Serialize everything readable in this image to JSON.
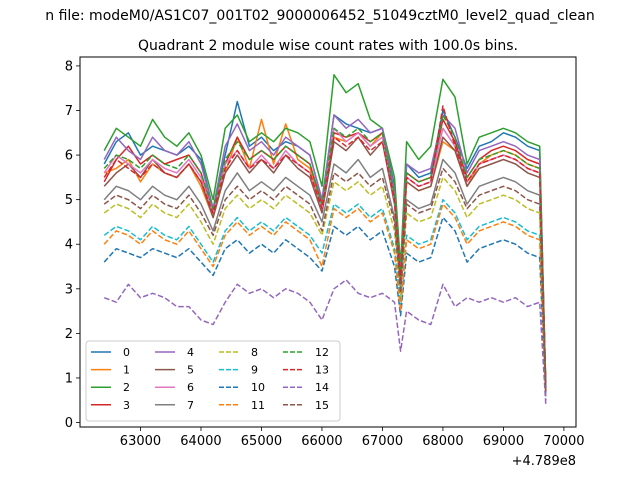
{
  "figure": {
    "suptitle": "n file: modeM0/AS1C07_001T02_9000006452_51049cztM0_level2_quad_clean",
    "x_offset_label": "+4.789e8"
  },
  "chart_data": {
    "type": "line",
    "title": "Quadrant 2 module wise count rates with 100.0s bins.",
    "xlabel": "",
    "ylabel": "",
    "xlim": [
      62000,
      70200
    ],
    "ylim": [
      -0.1,
      8.2
    ],
    "x_ticks": [
      63000,
      64000,
      65000,
      66000,
      67000,
      68000,
      69000,
      70000
    ],
    "y_ticks": [
      0,
      1,
      2,
      3,
      4,
      5,
      6,
      7,
      8
    ],
    "grid": false,
    "legend_position": "lower-left",
    "legend_columns": 4,
    "x": [
      62400,
      62600,
      62800,
      63000,
      63200,
      63400,
      63600,
      63800,
      64000,
      64200,
      64400,
      64600,
      64800,
      65000,
      65200,
      65400,
      65600,
      65800,
      66000,
      66200,
      66400,
      66600,
      66800,
      67000,
      67200,
      67300,
      67400,
      67600,
      67800,
      68000,
      68200,
      68400,
      68600,
      68800,
      69000,
      69200,
      69400,
      69600,
      69700
    ],
    "series": [
      {
        "name": "0",
        "color": "#1f77b4",
        "dash": "solid",
        "values": [
          5.8,
          6.3,
          6.5,
          6.0,
          6.2,
          6.1,
          6.0,
          6.2,
          5.9,
          4.8,
          6.0,
          7.2,
          6.2,
          6.4,
          6.1,
          6.3,
          6.2,
          6.0,
          5.0,
          6.9,
          6.7,
          6.6,
          6.5,
          6.6,
          5.3,
          3.4,
          5.8,
          5.5,
          5.6,
          7.0,
          6.4,
          5.7,
          6.2,
          6.3,
          6.5,
          6.4,
          6.2,
          6.1,
          0.8
        ]
      },
      {
        "name": "1",
        "color": "#ff7f0e",
        "dash": "solid",
        "values": [
          5.6,
          5.7,
          5.9,
          5.4,
          5.8,
          5.6,
          5.5,
          5.8,
          5.3,
          4.6,
          5.6,
          6.4,
          5.7,
          6.8,
          5.8,
          6.7,
          5.9,
          5.7,
          4.8,
          6.4,
          6.3,
          6.5,
          6.2,
          6.5,
          5.0,
          3.2,
          5.4,
          5.2,
          5.3,
          6.3,
          6.1,
          5.3,
          5.8,
          6.0,
          6.1,
          6.0,
          5.8,
          5.7,
          0.7
        ]
      },
      {
        "name": "2",
        "color": "#2ca02c",
        "dash": "solid",
        "values": [
          6.1,
          6.6,
          6.4,
          6.2,
          6.8,
          6.4,
          6.2,
          6.5,
          6.0,
          5.0,
          6.6,
          6.9,
          6.3,
          6.5,
          6.3,
          6.6,
          6.5,
          6.3,
          5.3,
          7.8,
          7.4,
          7.6,
          6.8,
          6.6,
          5.5,
          3.5,
          6.3,
          5.9,
          6.2,
          7.7,
          7.3,
          5.8,
          6.4,
          6.5,
          6.6,
          6.5,
          6.3,
          6.2,
          0.8
        ]
      },
      {
        "name": "3",
        "color": "#d62728",
        "dash": "solid",
        "values": [
          5.4,
          5.9,
          6.2,
          5.8,
          6.0,
          5.8,
          5.9,
          6.0,
          5.6,
          4.7,
          5.8,
          6.4,
          5.9,
          6.1,
          5.9,
          6.2,
          6.0,
          5.8,
          4.9,
          6.5,
          6.4,
          6.5,
          6.3,
          6.5,
          5.1,
          3.3,
          5.6,
          5.4,
          5.5,
          6.8,
          6.3,
          5.5,
          5.9,
          6.1,
          6.2,
          6.1,
          5.9,
          5.8,
          0.8
        ]
      },
      {
        "name": "4",
        "color": "#9467bd",
        "dash": "solid",
        "values": [
          5.9,
          6.4,
          6.1,
          5.9,
          6.4,
          6.1,
          6.0,
          6.3,
          5.8,
          4.8,
          6.2,
          6.7,
          6.1,
          6.3,
          6.0,
          6.4,
          6.2,
          6.0,
          5.0,
          6.9,
          6.6,
          6.8,
          6.5,
          6.6,
          5.2,
          3.3,
          5.8,
          5.6,
          5.7,
          6.9,
          6.6,
          5.6,
          6.1,
          6.2,
          6.3,
          6.2,
          6.0,
          5.9,
          0.8
        ]
      },
      {
        "name": "5",
        "color": "#8c564b",
        "dash": "solid",
        "values": [
          5.3,
          5.6,
          5.8,
          5.5,
          5.9,
          5.6,
          5.5,
          5.8,
          5.4,
          4.6,
          5.6,
          6.0,
          5.6,
          5.9,
          5.6,
          6.0,
          5.7,
          5.5,
          4.7,
          6.3,
          6.1,
          6.4,
          6.0,
          6.3,
          4.9,
          3.2,
          5.4,
          5.2,
          5.3,
          6.4,
          6.1,
          5.3,
          5.7,
          5.8,
          5.9,
          5.8,
          5.6,
          5.5,
          0.7
        ]
      },
      {
        "name": "6",
        "color": "#e377c2",
        "dash": "solid",
        "values": [
          5.6,
          6.0,
          5.8,
          5.6,
          5.9,
          5.7,
          5.6,
          5.9,
          5.5,
          4.7,
          5.8,
          6.1,
          5.7,
          6.0,
          5.7,
          6.1,
          5.8,
          5.6,
          4.8,
          6.6,
          6.3,
          6.5,
          6.2,
          6.4,
          5.0,
          3.2,
          5.5,
          5.3,
          5.4,
          6.6,
          6.2,
          5.4,
          5.8,
          5.9,
          6.0,
          5.9,
          5.7,
          5.6,
          0.7
        ]
      },
      {
        "name": "7",
        "color": "#7f7f7f",
        "dash": "solid",
        "values": [
          5.0,
          5.3,
          5.2,
          5.0,
          5.3,
          5.1,
          5.0,
          5.3,
          4.9,
          4.3,
          5.2,
          5.6,
          5.2,
          5.4,
          5.2,
          5.5,
          5.3,
          5.1,
          4.5,
          5.8,
          5.6,
          5.9,
          5.5,
          5.7,
          4.6,
          3.0,
          5.0,
          4.8,
          4.9,
          5.9,
          5.6,
          4.9,
          5.3,
          5.4,
          5.5,
          5.4,
          5.2,
          5.1,
          0.7
        ]
      },
      {
        "name": "8",
        "color": "#bcbd22",
        "dash": "dashed",
        "values": [
          4.7,
          4.9,
          4.8,
          4.6,
          4.9,
          4.7,
          4.6,
          4.9,
          4.5,
          4.0,
          4.8,
          5.1,
          4.8,
          5.0,
          4.8,
          5.1,
          4.9,
          4.7,
          4.2,
          5.4,
          5.2,
          5.4,
          5.1,
          5.3,
          4.3,
          2.8,
          4.7,
          4.5,
          4.6,
          5.5,
          5.2,
          4.6,
          4.9,
          5.0,
          5.1,
          5.0,
          4.8,
          4.7,
          0.6
        ]
      },
      {
        "name": "9",
        "color": "#17becf",
        "dash": "dashed",
        "values": [
          4.2,
          4.4,
          4.3,
          4.1,
          4.4,
          4.2,
          4.1,
          4.4,
          4.0,
          3.6,
          4.3,
          4.6,
          4.3,
          4.5,
          4.3,
          4.6,
          4.4,
          4.2,
          3.8,
          4.9,
          4.7,
          4.9,
          4.6,
          4.8,
          3.9,
          2.6,
          4.2,
          4.0,
          4.1,
          5.0,
          4.7,
          4.1,
          4.4,
          4.5,
          4.6,
          4.5,
          4.3,
          4.2,
          0.6
        ]
      },
      {
        "name": "10",
        "color": "#1f77b4",
        "dash": "dashed",
        "values": [
          3.6,
          3.9,
          3.8,
          3.7,
          3.9,
          3.8,
          3.7,
          3.9,
          3.6,
          3.3,
          3.9,
          4.1,
          3.8,
          4.0,
          3.8,
          4.1,
          3.9,
          3.7,
          3.4,
          4.4,
          4.2,
          4.4,
          4.1,
          4.3,
          3.5,
          2.4,
          3.8,
          3.6,
          3.7,
          4.6,
          4.3,
          3.6,
          3.9,
          4.0,
          4.1,
          4.0,
          3.8,
          3.7,
          0.5
        ]
      },
      {
        "name": "11",
        "color": "#ff7f0e",
        "dash": "dashed",
        "values": [
          4.0,
          4.3,
          4.2,
          4.0,
          4.3,
          4.1,
          4.0,
          4.3,
          3.9,
          3.5,
          4.2,
          4.5,
          4.2,
          4.4,
          4.2,
          4.5,
          4.3,
          4.1,
          3.5,
          4.8,
          4.6,
          4.8,
          4.5,
          4.7,
          3.8,
          2.5,
          4.1,
          3.9,
          4.0,
          4.9,
          4.6,
          4.0,
          4.3,
          4.4,
          4.5,
          4.4,
          4.2,
          4.1,
          0.6
        ]
      },
      {
        "name": "12",
        "color": "#2ca02c",
        "dash": "dashed",
        "values": [
          5.7,
          6.0,
          5.9,
          5.7,
          6.0,
          5.8,
          5.7,
          6.0,
          5.6,
          4.8,
          5.9,
          6.3,
          5.9,
          6.1,
          5.9,
          6.2,
          6.0,
          5.8,
          4.9,
          6.6,
          6.4,
          6.6,
          6.3,
          6.5,
          5.1,
          3.3,
          5.6,
          5.4,
          5.5,
          6.9,
          6.4,
          5.5,
          5.9,
          6.0,
          6.1,
          6.0,
          5.8,
          5.7,
          0.8
        ]
      },
      {
        "name": "13",
        "color": "#d62728",
        "dash": "dashed",
        "values": [
          5.5,
          5.9,
          5.7,
          5.5,
          5.8,
          5.6,
          5.5,
          5.8,
          5.4,
          4.7,
          5.7,
          6.1,
          5.7,
          5.9,
          5.7,
          6.0,
          5.8,
          5.6,
          4.8,
          6.4,
          6.2,
          6.4,
          6.1,
          6.3,
          5.0,
          3.2,
          5.5,
          5.3,
          5.4,
          7.1,
          6.2,
          5.4,
          5.8,
          5.9,
          6.0,
          5.9,
          5.7,
          5.6,
          0.7
        ]
      },
      {
        "name": "14",
        "color": "#9467bd",
        "dash": "dashed",
        "values": [
          2.8,
          2.7,
          3.1,
          2.8,
          2.9,
          2.8,
          2.6,
          2.6,
          2.3,
          2.2,
          2.7,
          3.1,
          2.9,
          3.0,
          2.8,
          3.0,
          2.9,
          2.7,
          2.3,
          3.0,
          3.2,
          2.9,
          2.8,
          2.9,
          2.7,
          1.6,
          2.5,
          2.3,
          2.2,
          3.1,
          2.6,
          2.8,
          2.7,
          2.8,
          2.7,
          2.8,
          2.6,
          2.7,
          0.4
        ]
      },
      {
        "name": "15",
        "color": "#8c564b",
        "dash": "dashed",
        "values": [
          4.9,
          5.1,
          5.0,
          4.8,
          5.1,
          4.9,
          4.8,
          5.1,
          4.7,
          4.2,
          5.0,
          5.3,
          5.0,
          5.2,
          5.0,
          5.3,
          5.1,
          4.9,
          4.3,
          5.6,
          5.4,
          5.6,
          5.3,
          5.5,
          4.5,
          2.9,
          4.9,
          4.7,
          4.8,
          5.7,
          5.4,
          4.8,
          5.1,
          5.2,
          5.3,
          5.2,
          5.0,
          4.9,
          0.7
        ]
      }
    ]
  }
}
